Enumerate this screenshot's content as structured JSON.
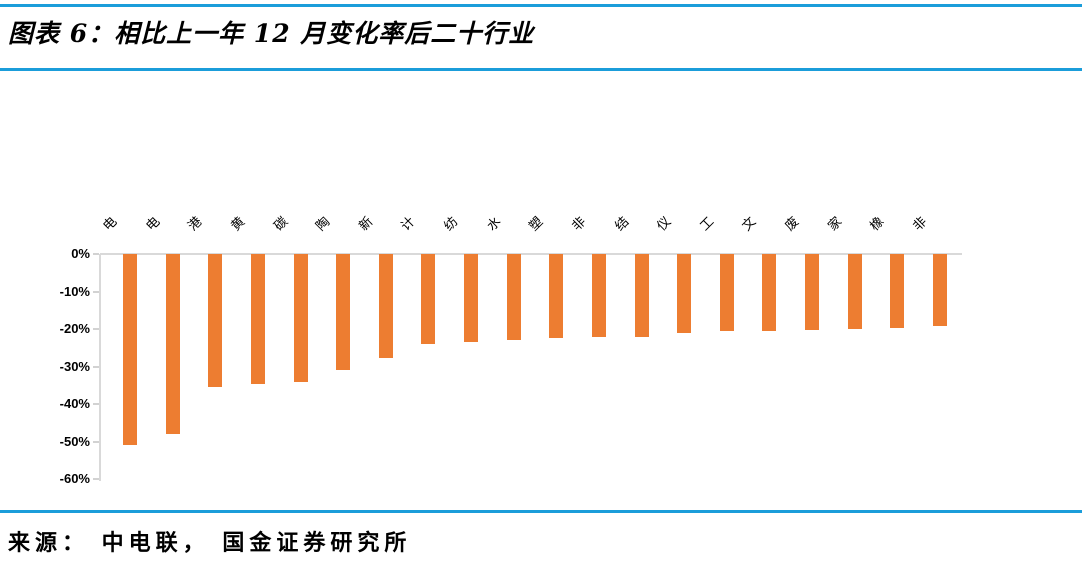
{
  "header": {
    "title": "图表 6：相比上一年 12 月变化率后二十行业"
  },
  "footer": {
    "source": "来源： 中电联， 国金证券研究所"
  },
  "colors": {
    "accent_blue": "#1b9dda",
    "bar_orange": "#ED7D31",
    "axis_gray": "#d9d9d9",
    "text_black": "#000000"
  },
  "chart_data": {
    "type": "bar",
    "title": "相比上一年 12 月变化率后二十行业",
    "categories": [
      "电",
      "电",
      "港",
      "黄",
      "碳",
      "陶",
      "新",
      "计",
      "纺",
      "水",
      "塑",
      "非",
      "结",
      "仪",
      "工",
      "文",
      "废",
      "家",
      "橡",
      "非"
    ],
    "values": [
      -51,
      -48,
      -35.5,
      -34.6,
      -34.1,
      -30.8,
      -27.7,
      -24,
      -23.4,
      -23,
      -22.4,
      -22.2,
      -22,
      -21,
      -20.6,
      -20.4,
      -20.2,
      -20,
      -19.7,
      -19.3
    ],
    "xlabel": "",
    "ylabel": "",
    "ylim": [
      -60,
      0
    ],
    "yticks": [
      "0%",
      "-10%",
      "-20%",
      "-30%",
      "-40%",
      "-50%",
      "-60%"
    ],
    "ytick_values": [
      0,
      -10,
      -20,
      -30,
      -40,
      -50,
      -60
    ],
    "grid": false,
    "legend": "none",
    "bar_color": "#ED7D31"
  }
}
